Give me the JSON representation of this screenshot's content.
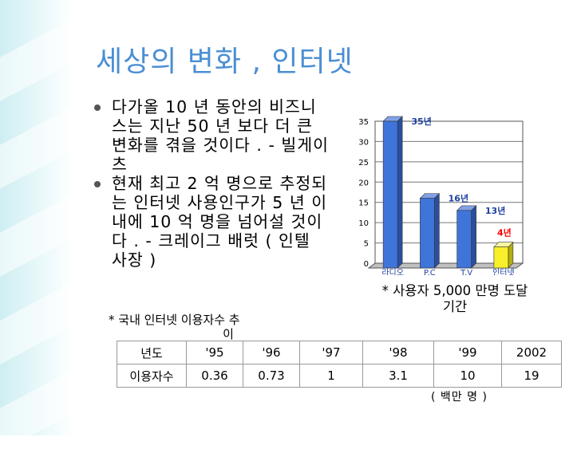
{
  "slide": {
    "title": "세상의 변화 , 인터넷",
    "bullets": [
      "다가올 10 년 동안의 비즈니스는 지난 50 년 보다 더 큰 변화를 겪을 것이다 . - 빌게이츠",
      "현재 최고 2 억 명으로 추정되는 인터넷 사용인구가 5 년 이내에 10 억 명을 넘어설 것이다 . - 크레이그 배럿 ( 인텔 사장 )"
    ],
    "subnote_line1": "* 국내 인터넷 이용자수 추",
    "subnote_line2": "이",
    "chart_note_line1": "* 사용자 5,000 만명 도달",
    "chart_note_line2": "기간",
    "unit_label": "( 백만 명 )",
    "colors": {
      "title": "#4a8fd4",
      "bar": "#3f74d9",
      "highlight_bar": "#f7f02a",
      "highlight_label": "#ff0000"
    }
  },
  "table": {
    "header_label": "년도",
    "row_label": "이용자수",
    "years": [
      "'95",
      "'96",
      "'97",
      "'98",
      "'99",
      "2002"
    ],
    "values": [
      "0.36",
      "0.73",
      "1",
      "3.1",
      "10",
      "19"
    ]
  },
  "chart_data": {
    "type": "bar",
    "categories": [
      "라디오",
      "P.C",
      "T.V",
      "인터넷"
    ],
    "values": [
      35,
      16,
      13,
      4
    ],
    "data_labels": [
      "35년",
      "16년",
      "13년",
      "4년"
    ],
    "yticks": [
      0,
      5,
      10,
      15,
      20,
      25,
      30,
      35
    ],
    "ylim": [
      0,
      35
    ],
    "grid": true
  }
}
